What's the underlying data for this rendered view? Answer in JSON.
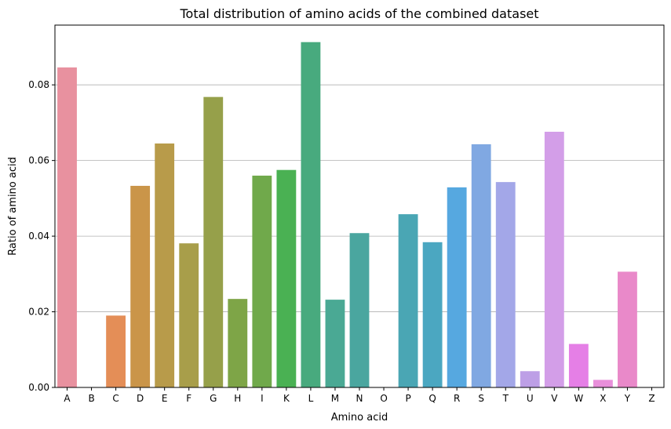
{
  "chart_data": {
    "type": "bar",
    "title": "Total distribution of amino acids of the combined dataset",
    "xlabel": "Amino acid",
    "ylabel": "Ratio of amino acid",
    "categories": [
      "A",
      "B",
      "C",
      "D",
      "E",
      "F",
      "G",
      "H",
      "I",
      "K",
      "L",
      "M",
      "N",
      "O",
      "P",
      "Q",
      "R",
      "S",
      "T",
      "U",
      "V",
      "W",
      "X",
      "Y",
      "Z"
    ],
    "values": [
      0.0846,
      0.0,
      0.019,
      0.0533,
      0.0645,
      0.0381,
      0.0768,
      0.0234,
      0.056,
      0.0575,
      0.0913,
      0.0232,
      0.0408,
      0.0,
      0.0458,
      0.0384,
      0.0529,
      0.0643,
      0.0543,
      0.0043,
      0.0676,
      0.0115,
      0.002,
      0.0306,
      0.0
    ],
    "colors": [
      "#e8919f",
      "#e68d80",
      "#e48e57",
      "#ca9549",
      "#b89b4a",
      "#a89e4a",
      "#96a04a",
      "#7ea547",
      "#70a94b",
      "#4ab153",
      "#48aa7e",
      "#4aa994",
      "#4aa69f",
      "#4ca8ad",
      "#4aa6b4",
      "#4ba7c1",
      "#56a8e0",
      "#80a8e2",
      "#a3a7e8",
      "#bd9fe6",
      "#d39ee8",
      "#e57fe6",
      "#e88fda",
      "#e989c9",
      "#ea8fb3"
    ],
    "yticks": [
      "0.00",
      "0.02",
      "0.04",
      "0.06",
      "0.08"
    ],
    "ylim": [
      0,
      0.0958
    ],
    "grid": "y"
  }
}
